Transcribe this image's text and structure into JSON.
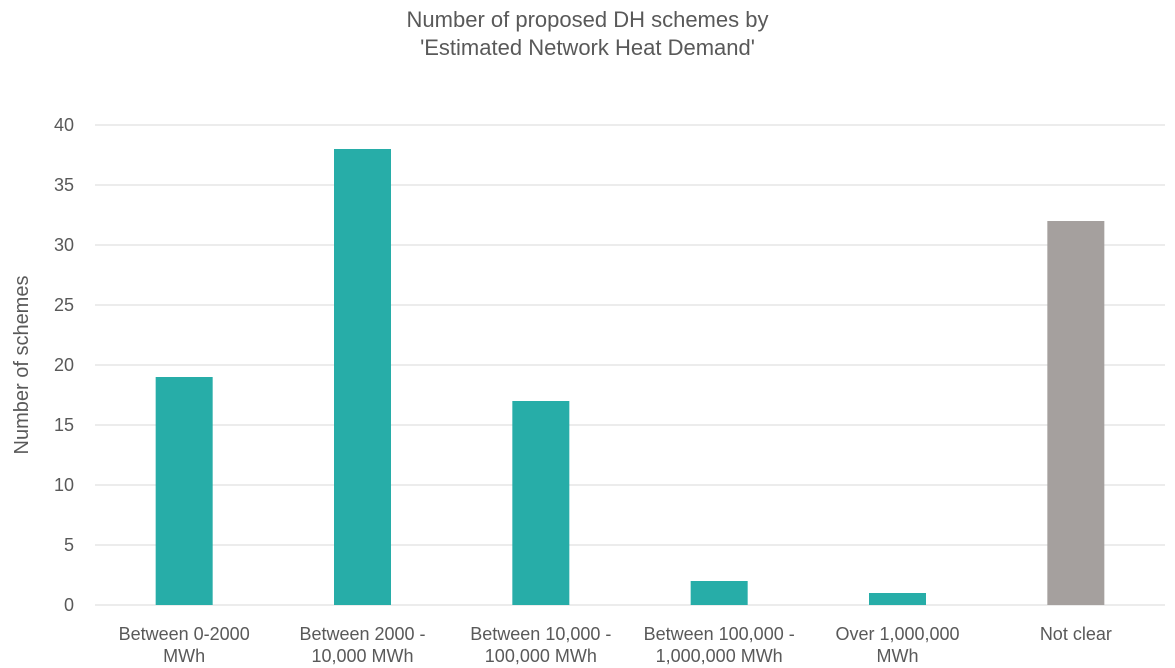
{
  "chart_data": {
    "type": "bar",
    "title_lines": [
      "Number of proposed DH schemes by",
      "'Estimated Network Heat Demand'"
    ],
    "xlabel": "",
    "ylabel": "Number of schemes",
    "ylim": [
      0,
      40
    ],
    "yticks": [
      0,
      5,
      10,
      15,
      20,
      25,
      30,
      35,
      40
    ],
    "grid": true,
    "categories": [
      [
        "Between 0-2000",
        "MWh"
      ],
      [
        "Between 2000 -",
        "10,000 MWh"
      ],
      [
        "Between 10,000 -",
        "100,000 MWh"
      ],
      [
        "Between 100,000 -",
        "1,000,000 MWh"
      ],
      [
        "Over 1,000,000",
        "MWh"
      ],
      [
        "Not clear"
      ]
    ],
    "values": [
      19,
      38,
      17,
      2,
      1,
      32
    ],
    "bar_colors": [
      "#27ADA8",
      "#27ADA8",
      "#27ADA8",
      "#27ADA8",
      "#27ADA8",
      "#A5A09E"
    ],
    "grid_color": "#D9D9D9"
  }
}
